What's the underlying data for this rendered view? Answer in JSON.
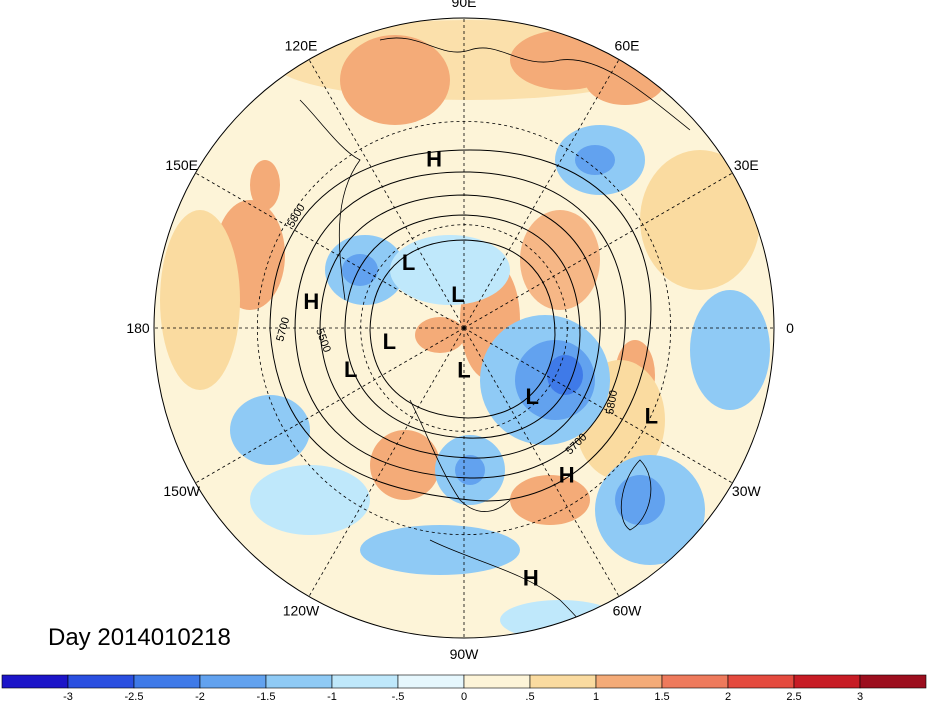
{
  "title": "Day 2014010218",
  "longitude_labels": [
    {
      "text": "90E",
      "lon": 90
    },
    {
      "text": "60E",
      "lon": 60
    },
    {
      "text": "30E",
      "lon": 30
    },
    {
      "text": "0",
      "lon": 0
    },
    {
      "text": "30W",
      "lon": -30
    },
    {
      "text": "60W",
      "lon": -60
    },
    {
      "text": "90W",
      "lon": -90
    },
    {
      "text": "120W",
      "lon": -120
    },
    {
      "text": "150W",
      "lon": -150
    },
    {
      "text": "180",
      "lon": 180
    },
    {
      "text": "150E",
      "lon": 150
    },
    {
      "text": "120E",
      "lon": 120
    }
  ],
  "contour_labels": [
    "5800",
    "5700",
    "5500",
    "5800",
    "5700"
  ],
  "pressure_systems": [
    {
      "type": "H",
      "lon": 100,
      "lat": 40
    },
    {
      "type": "H",
      "lon": 170,
      "lat": 45
    },
    {
      "type": "L",
      "lon": 130,
      "lat": 65
    },
    {
      "type": "L",
      "lon": 100,
      "lat": 80
    },
    {
      "type": "L",
      "lon": -170,
      "lat": 68
    },
    {
      "type": "L",
      "lon": -160,
      "lat": 55
    },
    {
      "type": "L",
      "lon": -90,
      "lat": 78
    },
    {
      "type": "L",
      "lon": -45,
      "lat": 62
    },
    {
      "type": "H",
      "lon": -55,
      "lat": 38
    },
    {
      "type": "L",
      "lon": -25,
      "lat": 30
    },
    {
      "type": "H",
      "lon": -75,
      "lat": 15
    }
  ],
  "colorbar": {
    "ticks": [
      "-3",
      "-2.5",
      "-2",
      "-1.5",
      "-1",
      "-.5",
      "0",
      ".5",
      "1",
      "1.5",
      "2",
      "2.5",
      "3"
    ],
    "colors": [
      "#1c15c8",
      "#2a4fe0",
      "#3f7ae8",
      "#62a2ef",
      "#8fcaf5",
      "#bfe8fb",
      "#e6f7fd",
      "#fdf4d8",
      "#fadba0",
      "#f4ab78",
      "#ee7a5c",
      "#e44a3e",
      "#c71c25",
      "#9c0e1e"
    ]
  }
}
